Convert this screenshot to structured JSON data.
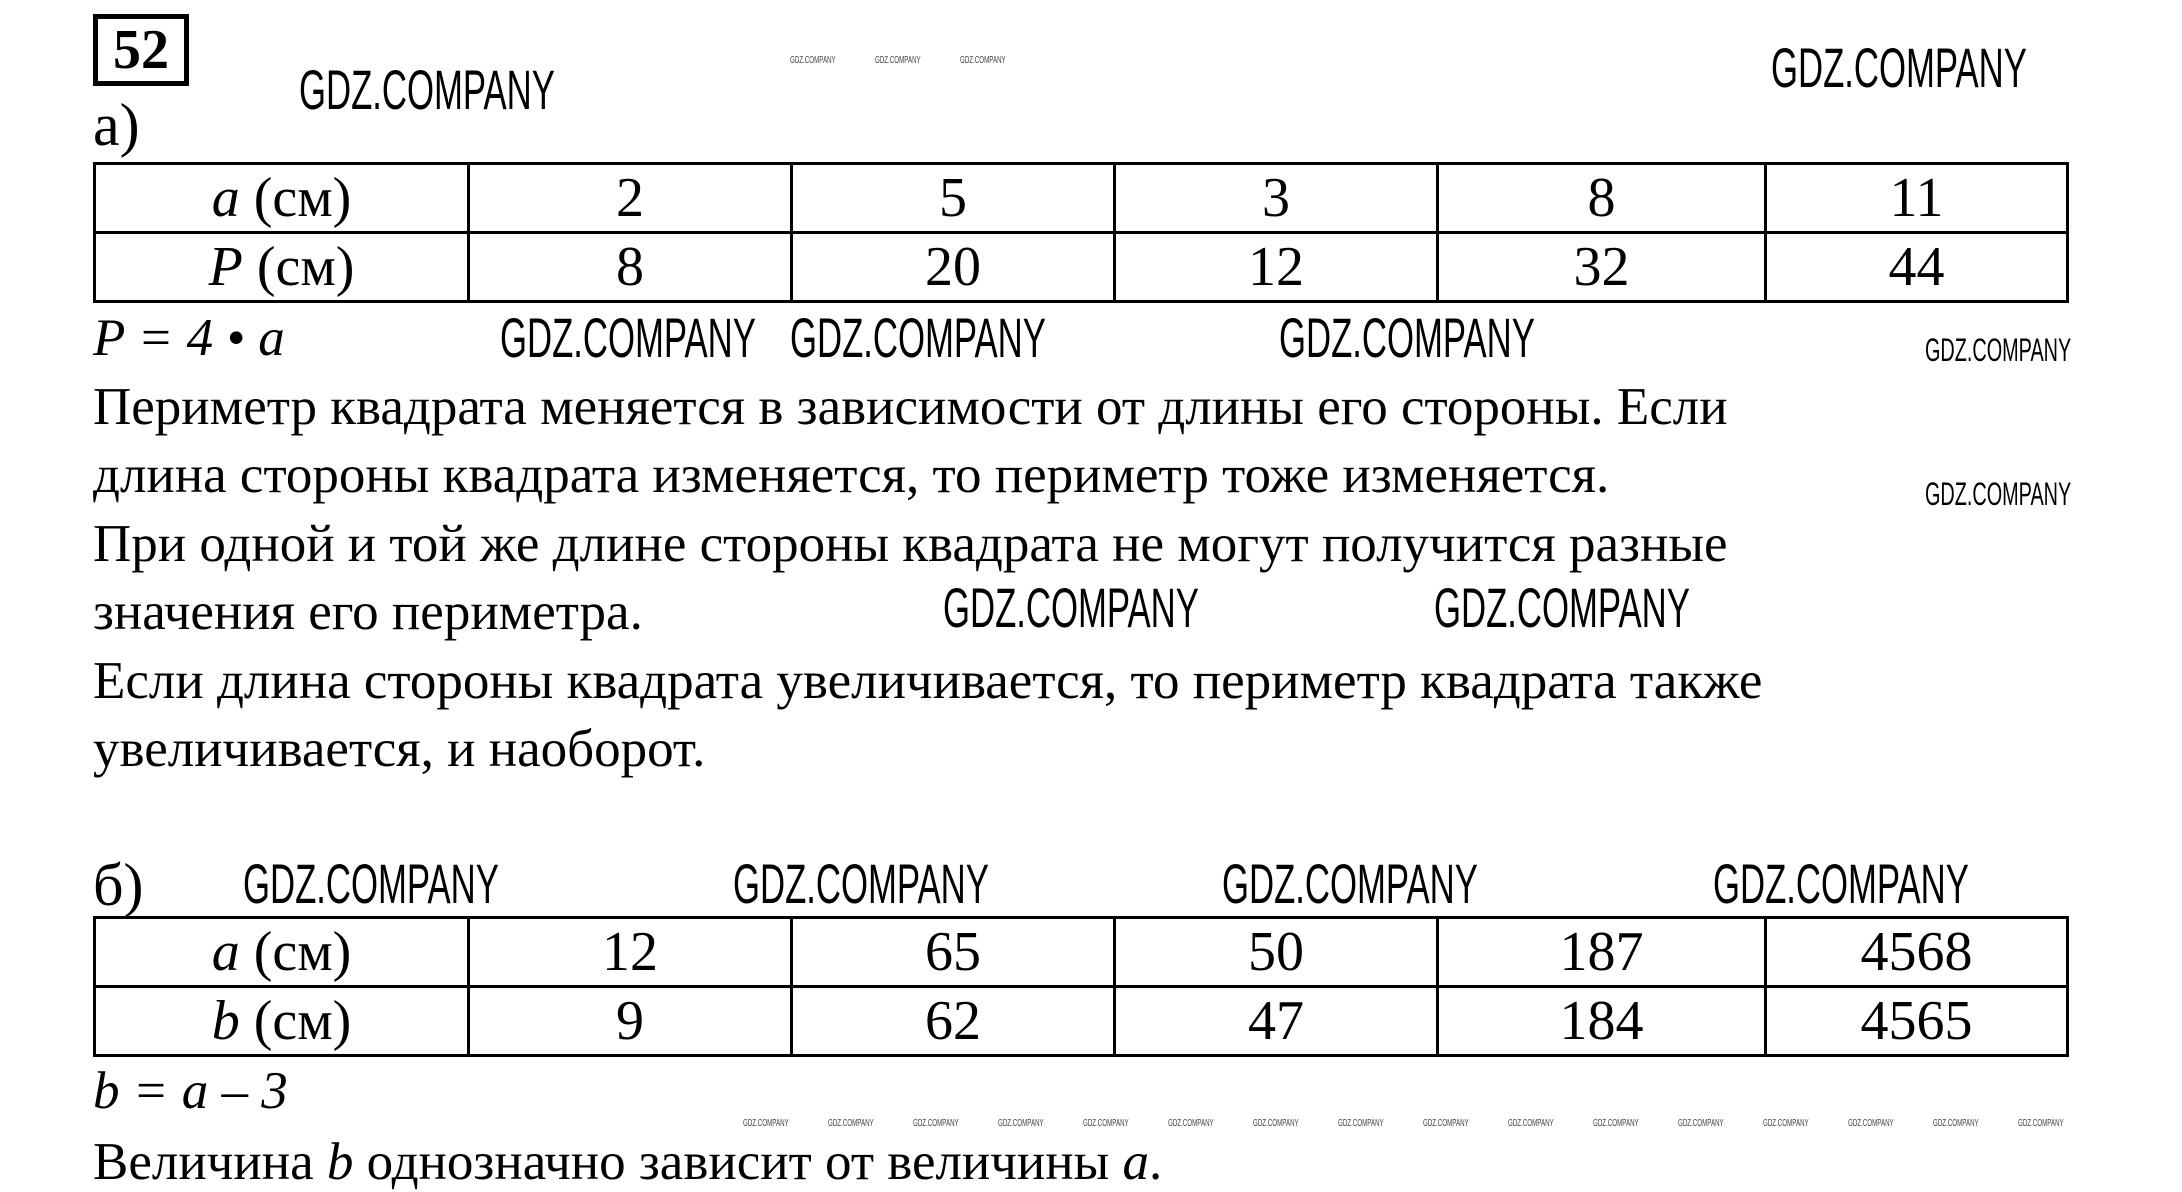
{
  "problem_number": "52",
  "part_a": {
    "label": "а)",
    "table": {
      "rows": [
        {
          "var": "a",
          "unit": "(см)",
          "values": [
            "2",
            "5",
            "3",
            "8",
            "11"
          ]
        },
        {
          "var": "P",
          "unit": "(см)",
          "values": [
            "8",
            "20",
            "12",
            "32",
            "44"
          ]
        }
      ]
    },
    "formula": "P = 4 • a",
    "lines": [
      "Периметр квадрата меняется в зависимости от длины его стороны. Если",
      "длина стороны квадрата изменяется, то периметр тоже изменяется.",
      "При одной и той же длине стороны квадрата не могут получится разные",
      "значения его периметра.",
      "Если длина стороны квадрата увеличивается, то периметр квадрата также",
      "увеличивается, и наоборот."
    ]
  },
  "part_b": {
    "label": "б)",
    "table": {
      "rows": [
        {
          "var": "a",
          "unit": "(см)",
          "values": [
            "12",
            "65",
            "50",
            "187",
            "4568"
          ]
        },
        {
          "var": "b",
          "unit": "(см)",
          "values": [
            "9",
            "62",
            "47",
            "184",
            "4565"
          ]
        }
      ]
    },
    "formula": "b = a – 3",
    "conclusion": {
      "pre": "Величина ",
      "v1": "b",
      "mid": " однозначно зависит от величины ",
      "v2": "a",
      "post": "."
    }
  },
  "watermark": "GDZ.COMPANY"
}
